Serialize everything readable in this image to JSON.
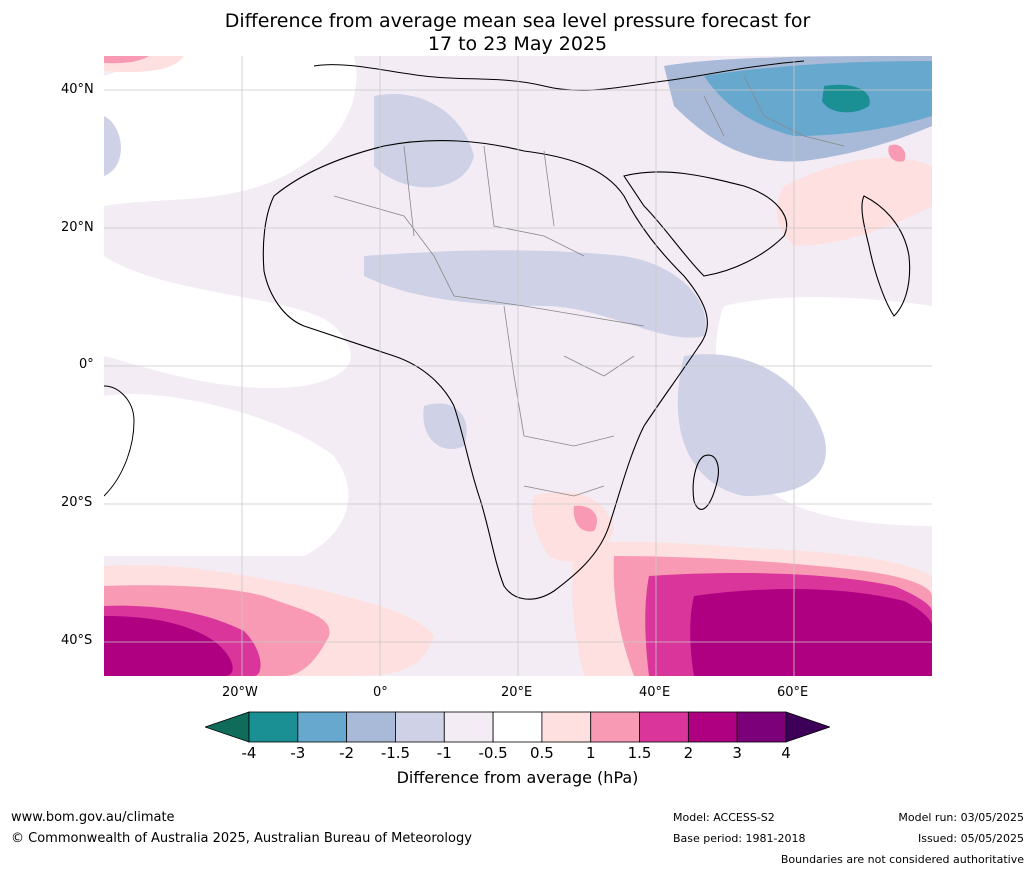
{
  "title": {
    "line1": "Difference from average mean sea level pressure forecast for",
    "line2": "17 to 23 May 2025"
  },
  "lat_labels": [
    "40°N",
    "20°N",
    "0°",
    "20°S",
    "40°S"
  ],
  "lon_labels": [
    "20°W",
    "0°",
    "20°E",
    "40°E",
    "60°E"
  ],
  "legend": {
    "label": "Difference from average (hPa)",
    "ticks": [
      "-4",
      "-3",
      "-2",
      "-1.5",
      "-1",
      "-0.5",
      "0.5",
      "1",
      "1.5",
      "2",
      "3",
      "4"
    ],
    "colors": [
      "#0f6b5a",
      "#1a8f94",
      "#67a8cf",
      "#a8bad8",
      "#cfd1e6",
      "#f3ecf5",
      "#ffffff",
      "#fde0df",
      "#f99ab4",
      "#d9359b",
      "#b00082",
      "#7b007a",
      "#3d0059"
    ]
  },
  "footer": {
    "website": "www.bom.gov.au/climate",
    "copyright": "© Commonwealth of Australia 2025, Australian Bureau of Meteorology",
    "model": "Model: ACCESS-S2",
    "base_period": "Base period: 1981-2018",
    "model_run": "Model run: 03/05/2025",
    "issued": "Issued: 05/05/2025",
    "boundaries": "Boundaries are not considered authoritative"
  }
}
